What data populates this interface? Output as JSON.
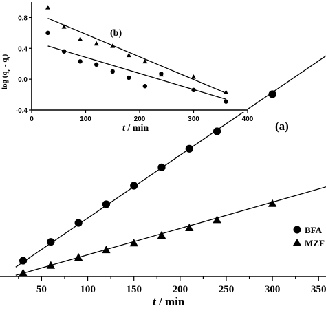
{
  "chart_data": [
    {
      "id": "main",
      "type": "scatter",
      "panel_label": "(a)",
      "xlabel_italic": "t",
      "xlabel_rest": " / min",
      "ylabel": "",
      "xlim": [
        5,
        358
      ],
      "ylim": [
        0,
        1
      ],
      "xticks": [
        50,
        100,
        150,
        200,
        250,
        300,
        350
      ],
      "xtick_labels": [
        "50",
        "100",
        "150",
        "200",
        "250",
        "300",
        "350"
      ],
      "series": [
        {
          "name": "BFA",
          "marker": "circle",
          "x": [
            30,
            60,
            90,
            120,
            150,
            180,
            210,
            240,
            300
          ],
          "y": [
            0.067,
            0.147,
            0.228,
            0.307,
            0.386,
            0.464,
            0.543,
            0.617,
            0.775
          ],
          "fit": {
            "x": [
              22,
              358
            ],
            "y": [
              0.04,
              0.938
            ]
          }
        },
        {
          "name": "MZF",
          "marker": "triangle",
          "x": [
            30,
            60,
            90,
            120,
            150,
            180,
            210,
            240,
            300
          ],
          "y": [
            0.015,
            0.047,
            0.081,
            0.113,
            0.142,
            0.175,
            0.207,
            0.241,
            0.31
          ],
          "fit": {
            "x": [
              22,
              358
            ],
            "y": [
              0.005,
              0.381
            ]
          }
        }
      ]
    },
    {
      "id": "inset",
      "type": "scatter",
      "panel_label": "(b)",
      "xlabel_italic": "t",
      "xlabel_rest": " / min",
      "ylabel_prefix": "log (q",
      "ylabel_sub1": "e",
      "ylabel_mid": " - q",
      "ylabel_sub2": "t",
      "ylabel_suffix": ")",
      "xlim": [
        0,
        400
      ],
      "ylim": [
        -0.4,
        1.0
      ],
      "xticks": [
        0,
        100,
        200,
        300,
        400
      ],
      "xtick_labels": [
        "0",
        "100",
        "200",
        "300",
        "400"
      ],
      "yticks": [
        -0.4,
        0.0,
        0.4,
        0.8
      ],
      "ytick_labels": [
        "-0.4",
        "0.0",
        "0.4",
        "0.8"
      ],
      "series": [
        {
          "name": "BFA",
          "marker": "circle",
          "x": [
            30,
            60,
            90,
            120,
            150,
            180,
            210,
            240,
            300,
            360
          ],
          "y": [
            0.6,
            0.36,
            0.23,
            0.19,
            0.1,
            0.02,
            -0.09,
            0.07,
            -0.14,
            -0.29
          ],
          "fit": {
            "x": [
              30,
              360
            ],
            "y": [
              0.43,
              -0.26
            ]
          }
        },
        {
          "name": "MZF",
          "marker": "triangle",
          "x": [
            30,
            60,
            90,
            120,
            150,
            180,
            210,
            240,
            300,
            360
          ],
          "y": [
            0.93,
            0.68,
            0.52,
            0.46,
            0.43,
            0.31,
            0.23,
            0.06,
            0.03,
            -0.17
          ],
          "fit": {
            "x": [
              30,
              360
            ],
            "y": [
              0.79,
              -0.18
            ]
          }
        }
      ]
    }
  ]
}
